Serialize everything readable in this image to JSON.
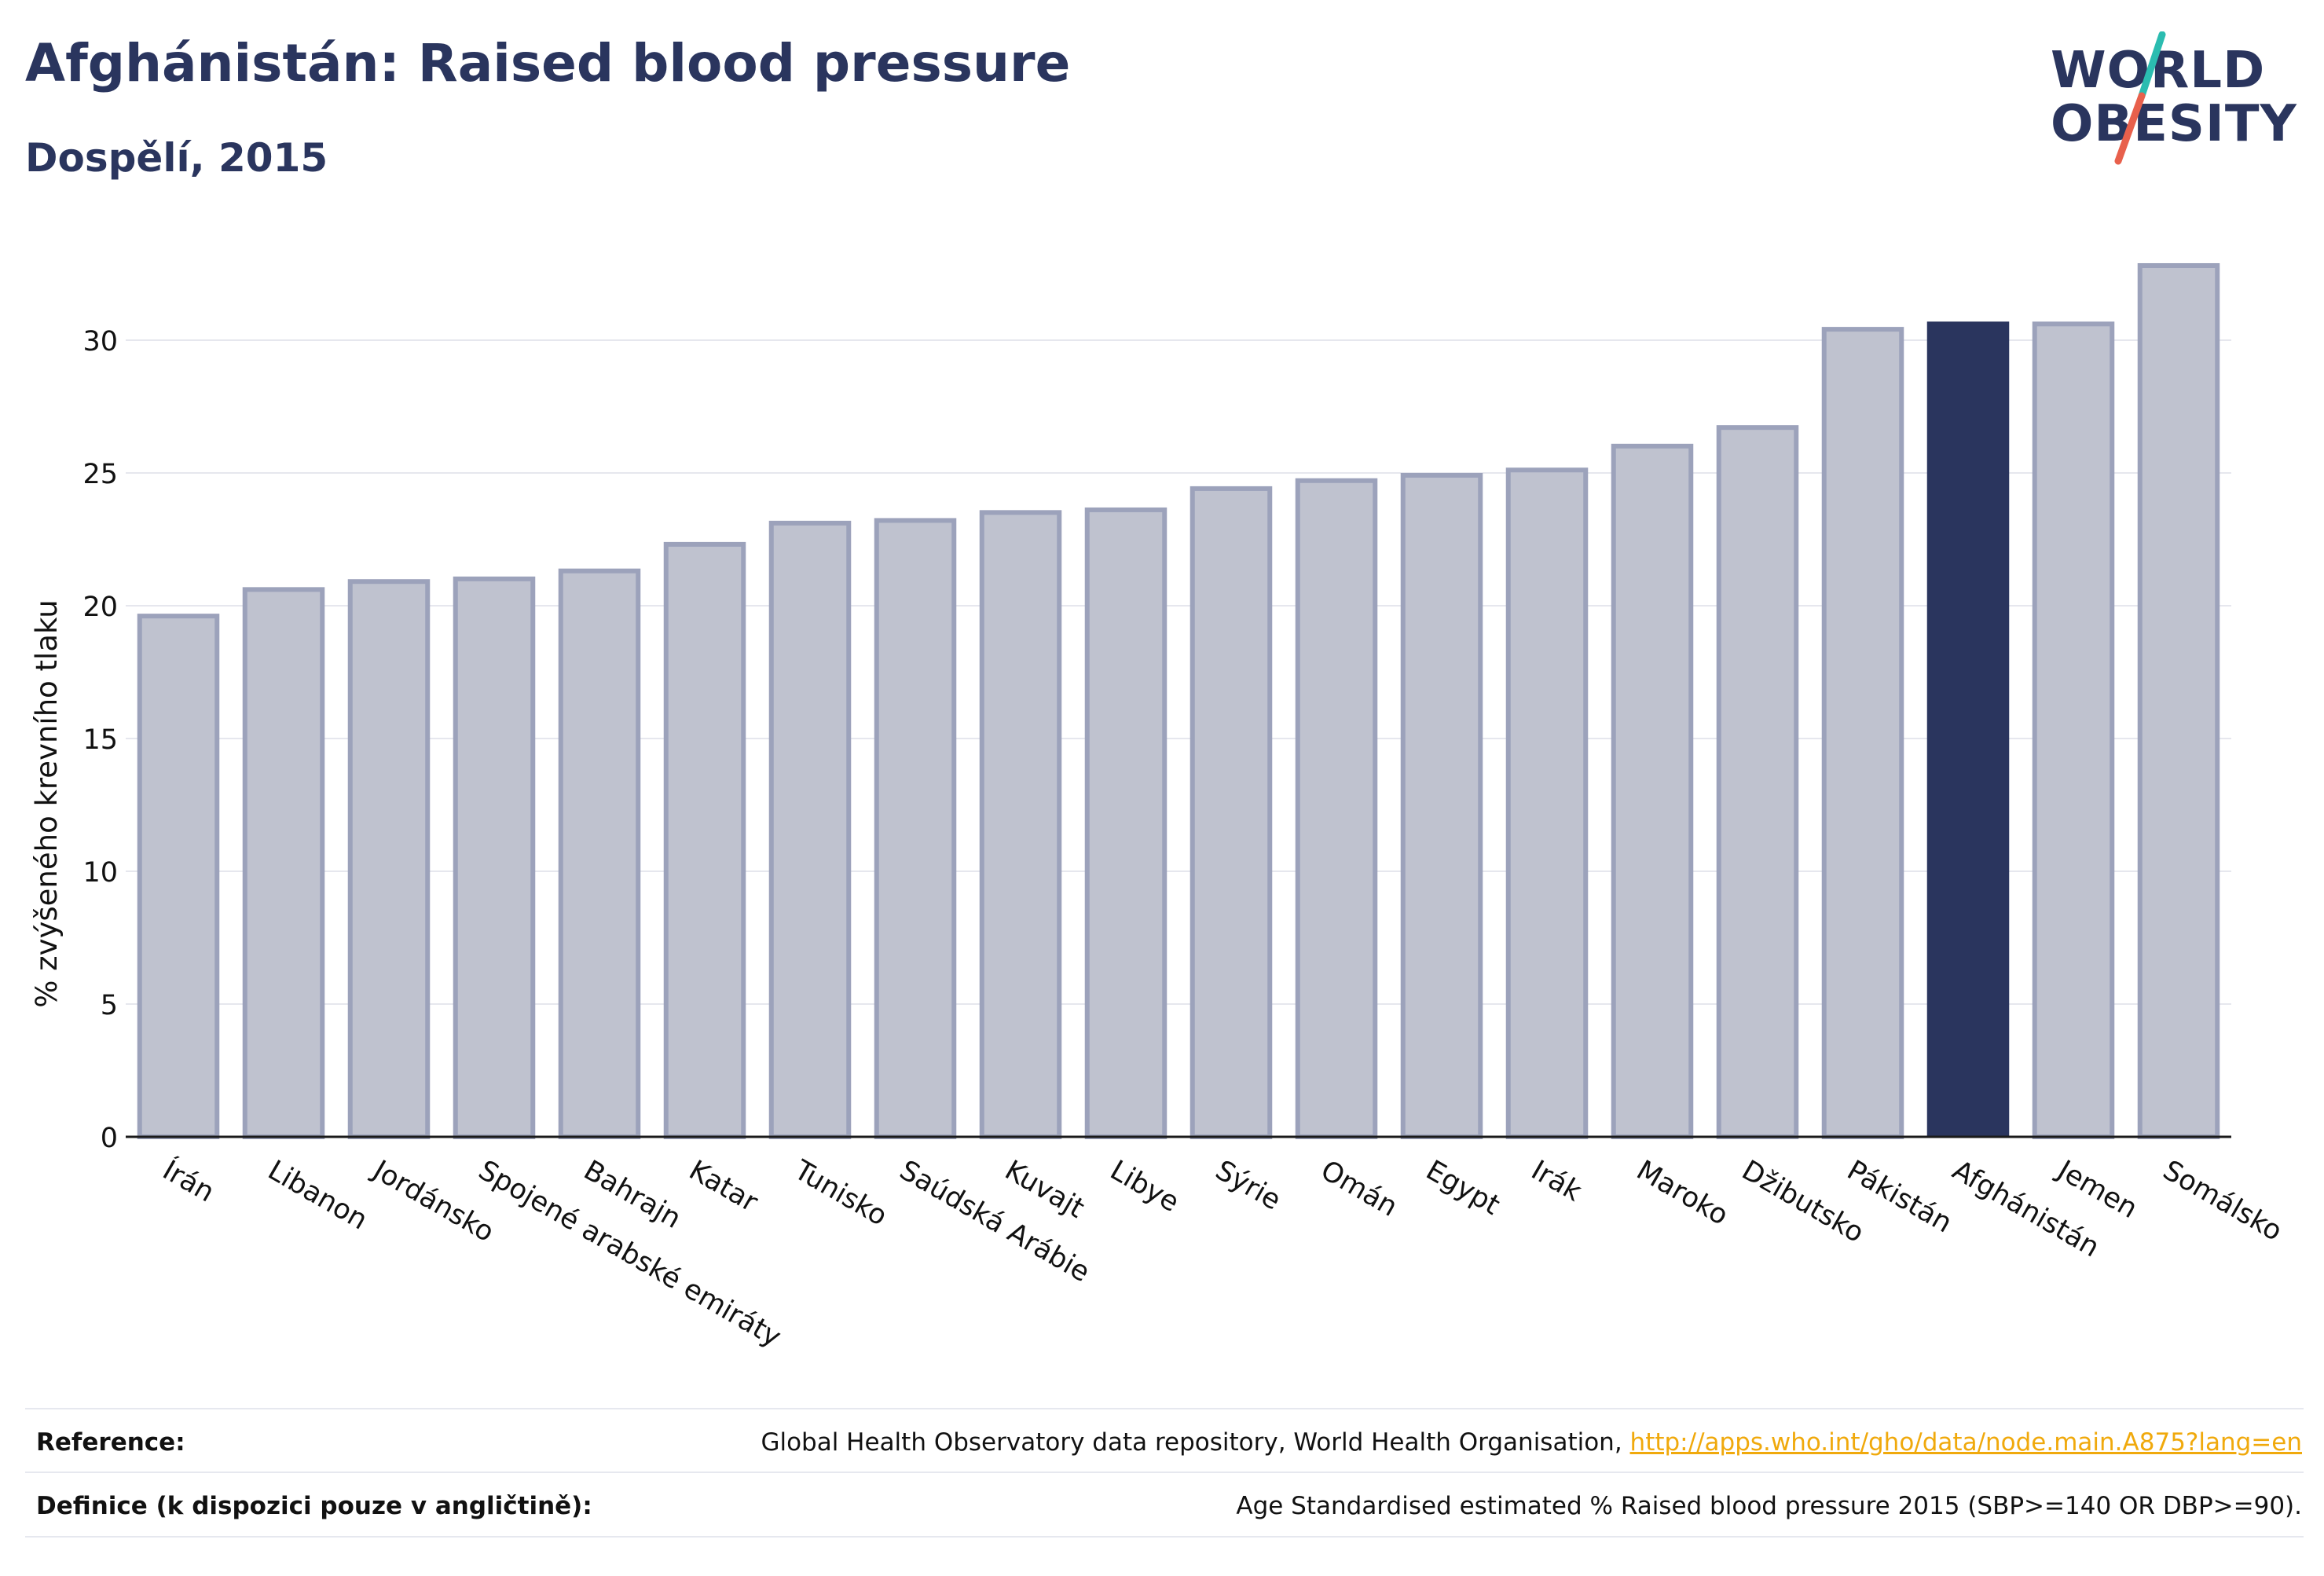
{
  "header": {
    "title": "Afghánistán: Raised blood pressure",
    "subtitle": "Dospělí, 2015"
  },
  "logo": {
    "line1": "WORLD",
    "line2": "OBESITY",
    "slash_colors": [
      "#2bbcb0",
      "#e8604c"
    ]
  },
  "colors": {
    "bar": "#2a355e",
    "bar_muted_fill": "#bfc2cf",
    "bar_muted_stroke": "#9ca2bb",
    "grid": "#e6e7ee",
    "text": "#2a355e"
  },
  "chart_data": {
    "type": "bar",
    "ylabel": "% zvýšeného krevního tlaku",
    "xlabel": "",
    "ylim": [
      0,
      34
    ],
    "yticks": [
      0,
      5,
      10,
      15,
      20,
      25,
      30
    ],
    "highlight": "Afghánistán",
    "categories": [
      "Írán",
      "Libanon",
      "Jordánsko",
      "Spojené arabské emiráty",
      "Bahrajn",
      "Katar",
      "Tunisko",
      "Saúdská Arábie",
      "Kuvajt",
      "Libye",
      "Sýrie",
      "Omán",
      "Egypt",
      "Irák",
      "Maroko",
      "Džibutsko",
      "Pákistán",
      "Afghánistán",
      "Jemen",
      "Somálsko"
    ],
    "values": [
      19.7,
      20.7,
      21.0,
      21.1,
      21.4,
      22.4,
      23.2,
      23.3,
      23.6,
      23.7,
      24.5,
      24.8,
      25.0,
      25.2,
      26.1,
      26.8,
      30.5,
      30.7,
      30.7,
      32.9
    ]
  },
  "footer": {
    "reference_label": "Reference:",
    "reference_text": "Global Health Observatory data repository, World Health Organisation, ",
    "reference_link": "http://apps.who.int/gho/data/node.main.A875?lang=en",
    "definition_label": "Definice (k dispozici pouze v angličtině):",
    "definition_text": "Age Standardised estimated % Raised blood pressure 2015 (SBP>=140 OR DBP>=90)."
  }
}
